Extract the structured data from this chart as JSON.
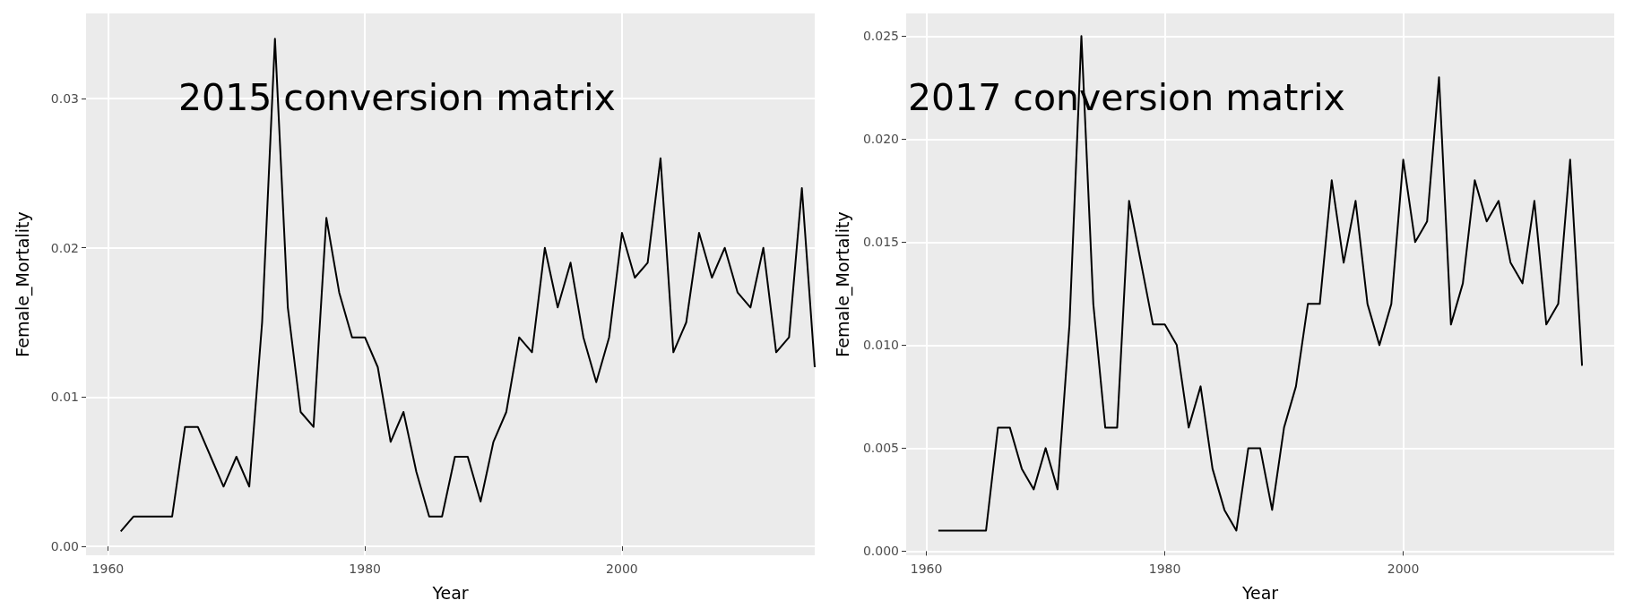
{
  "chart_data": [
    {
      "type": "line",
      "xlabel": "Year",
      "ylabel": "Female_Mortality",
      "annotations": [
        "2015 conversion matrix"
      ],
      "grid": true,
      "marker": "none",
      "line_style": "solid",
      "x": [
        1961,
        1962,
        1963,
        1964,
        1965,
        1966,
        1967,
        1968,
        1969,
        1970,
        1971,
        1972,
        1973,
        1974,
        1975,
        1976,
        1977,
        1978,
        1979,
        1980,
        1981,
        1982,
        1983,
        1984,
        1985,
        1986,
        1987,
        1988,
        1989,
        1990,
        1991,
        1992,
        1993,
        1994,
        1995,
        1996,
        1997,
        1998,
        1999,
        2000,
        2001,
        2002,
        2003,
        2004,
        2005,
        2006,
        2007,
        2008,
        2009,
        2010,
        2011,
        2012,
        2013,
        2014,
        2015
      ],
      "series": [
        {
          "color": "#000000",
          "values": [
            0.001,
            0.002,
            0.002,
            0.002,
            0.002,
            0.008,
            0.008,
            0.006,
            0.004,
            0.006,
            0.004,
            0.015,
            0.034,
            0.016,
            0.009,
            0.008,
            0.022,
            0.017,
            0.014,
            0.014,
            0.012,
            0.007,
            0.009,
            0.005,
            0.002,
            0.002,
            0.006,
            0.006,
            0.003,
            0.007,
            0.009,
            0.014,
            0.013,
            0.02,
            0.016,
            0.019,
            0.014,
            0.011,
            0.014,
            0.021,
            0.018,
            0.019,
            0.026,
            0.013,
            0.015,
            0.021,
            0.018,
            0.02,
            0.017,
            0.016,
            0.02,
            0.013,
            0.014,
            0.024,
            0.012
          ]
        }
      ],
      "xlim": [
        1958.3,
        2015
      ],
      "xticks": [
        1960,
        1980,
        2000
      ],
      "ylim": [
        -0.0006,
        0.0357
      ],
      "yticks": [
        {
          "value": 0,
          "label": "0.00"
        },
        {
          "value": 0.01,
          "label": "0.01"
        },
        {
          "value": 0.02,
          "label": "0.02"
        },
        {
          "value": 0.03,
          "label": "0.03"
        }
      ]
    },
    {
      "type": "line",
      "xlabel": "Year",
      "ylabel": "Female_Mortality",
      "annotations": [
        "2017 conversion matrix"
      ],
      "grid": true,
      "marker": "none",
      "line_style": "solid",
      "x": [
        1961,
        1962,
        1963,
        1964,
        1965,
        1966,
        1967,
        1968,
        1969,
        1970,
        1971,
        1972,
        1973,
        1974,
        1975,
        1976,
        1977,
        1978,
        1979,
        1980,
        1981,
        1982,
        1983,
        1984,
        1985,
        1986,
        1987,
        1988,
        1989,
        1990,
        1991,
        1992,
        1993,
        1994,
        1995,
        1996,
        1997,
        1998,
        1999,
        2000,
        2001,
        2002,
        2003,
        2004,
        2005,
        2006,
        2007,
        2008,
        2009,
        2010,
        2011,
        2012,
        2013,
        2014,
        2015
      ],
      "series": [
        {
          "color": "#000000",
          "values": [
            0.001,
            0.001,
            0.001,
            0.001,
            0.001,
            0.006,
            0.006,
            0.004,
            0.003,
            0.005,
            0.003,
            0.011,
            0.025,
            0.012,
            0.006,
            0.006,
            0.017,
            0.014,
            0.011,
            0.011,
            0.01,
            0.006,
            0.008,
            0.004,
            0.002,
            0.001,
            0.005,
            0.005,
            0.002,
            0.006,
            0.008,
            0.012,
            0.012,
            0.018,
            0.014,
            0.017,
            0.012,
            0.01,
            0.012,
            0.019,
            0.015,
            0.016,
            0.023,
            0.011,
            0.013,
            0.018,
            0.016,
            0.017,
            0.014,
            0.013,
            0.017,
            0.011,
            0.012,
            0.019,
            0.009
          ]
        }
      ],
      "xlim": [
        1958.3,
        2017.7
      ],
      "xticks": [
        1960,
        1980,
        2000
      ],
      "ylim": [
        -0.0002,
        0.0261
      ],
      "yticks": [
        {
          "value": 0,
          "label": "0.000"
        },
        {
          "value": 0.005,
          "label": "0.005"
        },
        {
          "value": 0.01,
          "label": "0.010"
        },
        {
          "value": 0.015,
          "label": "0.015"
        },
        {
          "value": 0.02,
          "label": "0.020"
        },
        {
          "value": 0.025,
          "label": "0.025"
        }
      ]
    }
  ]
}
